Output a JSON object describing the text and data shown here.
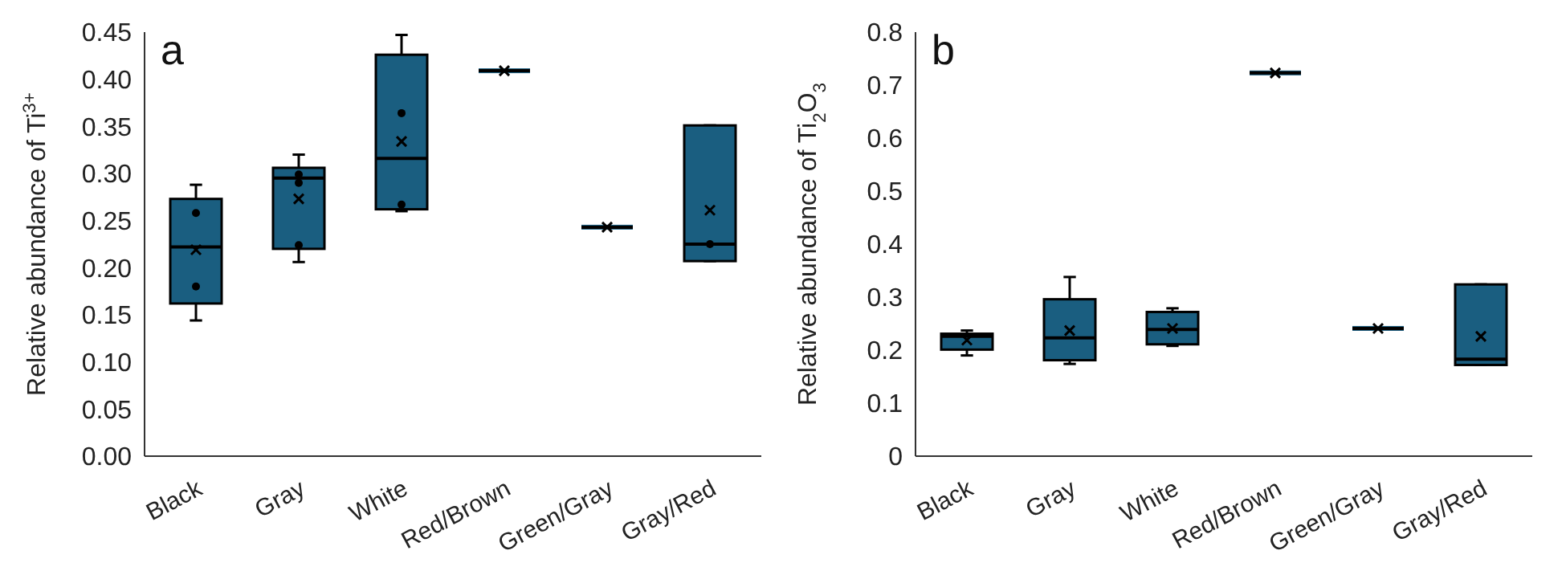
{
  "chart_data": [
    {
      "type": "box",
      "title": "a",
      "ylabel": "Relative abundance of Ti$^{3+}$",
      "categories": [
        "Black",
        "Gray",
        "White",
        "Red/Brown",
        "Green/Gray",
        "Gray/Red"
      ],
      "ylim": [
        0,
        0.45
      ],
      "yticks": [
        {
          "value": 0,
          "label": "0.00"
        },
        0.05,
        {
          "value": 0.1,
          "label": "0.10"
        },
        0.15,
        {
          "value": 0.2,
          "label": "0.20"
        },
        0.25,
        {
          "value": 0.3,
          "label": "0.30"
        },
        0.35,
        {
          "value": 0.4,
          "label": "0.40"
        },
        0.45
      ],
      "grid": false,
      "series": [
        {
          "type": "box",
          "color": "#1a5e80",
          "boxes": [
            {
              "low": 0.144,
              "q1": 0.162,
              "median": 0.222,
              "q3": 0.273,
              "high": 0.288,
              "mean": 0.219
            },
            {
              "low": 0.206,
              "q1": 0.22,
              "median": 0.295,
              "q3": 0.306,
              "high": 0.32,
              "mean": 0.273
            },
            {
              "low": 0.26,
              "q1": 0.262,
              "median": 0.316,
              "q3": 0.426,
              "high": 0.447,
              "mean": 0.334
            },
            {
              "low": 0.409,
              "q1": 0.409,
              "median": 0.409,
              "q3": 0.409,
              "high": 0.409,
              "mean": 0.409
            },
            {
              "low": 0.243,
              "q1": 0.243,
              "median": 0.243,
              "q3": 0.243,
              "high": 0.243,
              "mean": 0.243
            },
            {
              "low": 0.207,
              "q1": 0.207,
              "median": 0.225,
              "q3": 0.351,
              "high": 0.351,
              "mean": 0.261
            }
          ]
        },
        {
          "type": "scatter",
          "color": "#000000",
          "marker": "circle",
          "x": [
            "Black",
            "Black",
            "Gray",
            "Gray",
            "Gray",
            "White",
            "White",
            "Gray/Red"
          ],
          "values": [
            0.258,
            0.18,
            0.299,
            0.29,
            0.224,
            0.364,
            0.267,
            0.225
          ]
        }
      ]
    },
    {
      "type": "box",
      "title": "b",
      "ylabel": "Relative abundance of Ti$_{2}$O$_{3}$",
      "categories": [
        "Black",
        "Gray",
        "White",
        "Red/Brown",
        "Green/Gray",
        "Gray/Red"
      ],
      "ylim": [
        0,
        0.8
      ],
      "yticks": [
        0,
        0.1,
        0.2,
        0.3,
        0.4,
        0.5,
        0.6,
        0.7,
        0.8
      ],
      "grid": false,
      "series": [
        {
          "type": "box",
          "color": "#1a5e80",
          "boxes": [
            {
              "low": 0.19,
              "q1": 0.201,
              "median": 0.226,
              "q3": 0.231,
              "high": 0.237,
              "mean": 0.219
            },
            {
              "low": 0.174,
              "q1": 0.181,
              "median": 0.223,
              "q3": 0.296,
              "high": 0.338,
              "mean": 0.237
            },
            {
              "low": 0.208,
              "q1": 0.211,
              "median": 0.239,
              "q3": 0.272,
              "high": 0.279,
              "mean": 0.241
            },
            {
              "low": 0.723,
              "q1": 0.723,
              "median": 0.723,
              "q3": 0.723,
              "high": 0.723,
              "mean": 0.723
            },
            {
              "low": 0.241,
              "q1": 0.241,
              "median": 0.241,
              "q3": 0.241,
              "high": 0.241,
              "mean": 0.241
            },
            {
              "low": 0.172,
              "q1": 0.172,
              "median": 0.183,
              "q3": 0.324,
              "high": 0.324,
              "mean": 0.226
            }
          ]
        }
      ]
    }
  ]
}
